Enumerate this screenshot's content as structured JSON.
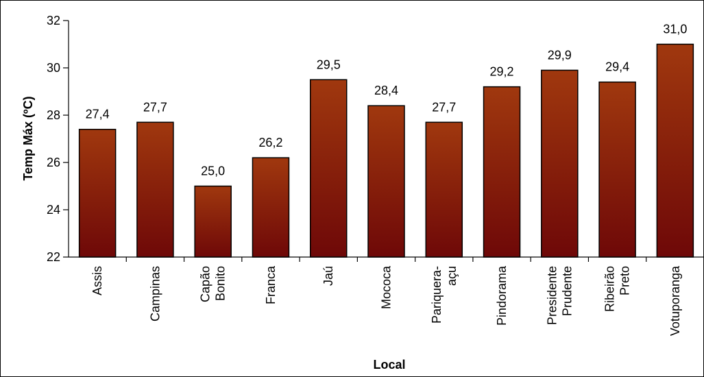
{
  "chart_data": {
    "type": "bar",
    "title": "",
    "xlabel": "Local",
    "ylabel": "Temp Máx (ºC)",
    "ylim": [
      22,
      32
    ],
    "yticks": [
      "22",
      "24",
      "26",
      "28",
      "30",
      "32"
    ],
    "grid": false,
    "legend": "none",
    "bar_color_top": "#a0380e",
    "bar_color_bottom": "#6e0808",
    "categories": [
      [
        "Assis"
      ],
      [
        "Campinas"
      ],
      [
        "Capão",
        "Bonito"
      ],
      [
        "Franca"
      ],
      [
        "Jaú"
      ],
      [
        "Mococa"
      ],
      [
        "Pariquera-",
        "açu"
      ],
      [
        "Pindorama"
      ],
      [
        "Presidente",
        "Prudente"
      ],
      [
        "Ribeirão",
        "Preto"
      ],
      [
        "Votuporanga"
      ]
    ],
    "values": [
      27.4,
      27.7,
      25.0,
      26.2,
      29.5,
      28.4,
      27.7,
      29.2,
      29.9,
      29.4,
      31.0
    ],
    "data_labels": [
      "27,4",
      "27,7",
      "25,0",
      "26,2",
      "29,5",
      "28,4",
      "27,7",
      "29,2",
      "29,9",
      "29,4",
      "31,0"
    ]
  }
}
